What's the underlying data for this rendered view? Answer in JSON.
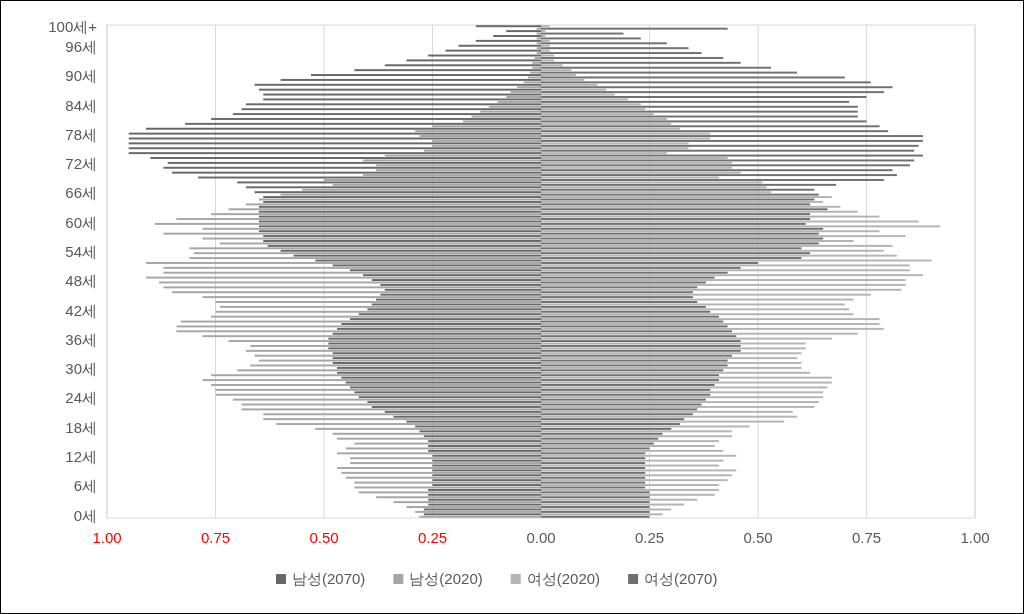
{
  "chart_data": {
    "type": "bar",
    "orientation": "horizontal",
    "legend": "bottom",
    "grid": "x",
    "categories": [
      "100세+",
      null,
      null,
      null,
      "96세",
      null,
      null,
      null,
      null,
      null,
      "90세",
      null,
      null,
      null,
      null,
      null,
      "84세",
      null,
      null,
      null,
      null,
      null,
      "78세",
      null,
      null,
      null,
      null,
      null,
      "72세",
      null,
      null,
      null,
      null,
      null,
      "66세",
      null,
      null,
      null,
      null,
      null,
      "60세",
      null,
      null,
      null,
      null,
      null,
      "54세",
      null,
      null,
      null,
      null,
      null,
      "48세",
      null,
      null,
      null,
      null,
      null,
      "42세",
      null,
      null,
      null,
      null,
      null,
      "36세",
      null,
      null,
      null,
      null,
      null,
      "30세",
      null,
      null,
      null,
      null,
      null,
      "24세",
      null,
      null,
      null,
      null,
      null,
      "18세",
      null,
      null,
      null,
      null,
      null,
      "12세",
      null,
      null,
      null,
      null,
      null,
      "6세",
      null,
      null,
      null,
      null,
      null,
      "0세"
    ],
    "xlim": [
      -1,
      1
    ],
    "xticks": [
      {
        "value": -1,
        "label": "1.00"
      },
      {
        "value": -0.75,
        "label": "0.75"
      },
      {
        "value": -0.5,
        "label": "0.50"
      },
      {
        "value": -0.25,
        "label": "0.25"
      },
      {
        "value": 0,
        "label": "0.00"
      },
      {
        "value": 0.25,
        "label": "0.25"
      },
      {
        "value": 0.5,
        "label": "0.50"
      },
      {
        "value": 0.75,
        "label": "0.75"
      },
      {
        "value": 1,
        "label": "1.00"
      }
    ],
    "series": [
      {
        "name": "남성(2070)",
        "color": "#686868",
        "values": [
          -0.15,
          -0.08,
          -0.11,
          -0.15,
          -0.19,
          -0.22,
          -0.26,
          -0.31,
          -0.36,
          -0.43,
          -0.53,
          -0.6,
          -0.66,
          -0.65,
          -0.64,
          -0.64,
          -0.68,
          -0.69,
          -0.71,
          -0.76,
          -0.82,
          -0.91,
          -0.95,
          -0.95,
          -0.95,
          -0.95,
          -0.95,
          -0.9,
          -0.86,
          -0.87,
          -0.85,
          -0.79,
          -0.7,
          -0.68,
          -0.66,
          -0.64,
          -0.64,
          -0.65,
          -0.65,
          -0.65,
          -0.65,
          -0.65,
          -0.65,
          -0.64,
          -0.64,
          -0.63,
          -0.6,
          -0.57,
          -0.52,
          -0.48,
          -0.44,
          -0.41,
          -0.39,
          -0.37,
          -0.36,
          -0.37,
          -0.38,
          -0.39,
          -0.4,
          -0.42,
          -0.44,
          -0.46,
          -0.47,
          -0.48,
          -0.49,
          -0.49,
          -0.49,
          -0.48,
          -0.48,
          -0.48,
          -0.47,
          -0.47,
          -0.46,
          -0.45,
          -0.44,
          -0.43,
          -0.42,
          -0.4,
          -0.39,
          -0.36,
          -0.34,
          -0.31,
          -0.29,
          -0.28,
          -0.27,
          -0.26,
          -0.26,
          -0.26,
          -0.25,
          -0.25,
          -0.25,
          -0.25,
          -0.25,
          -0.25,
          -0.25,
          -0.26,
          -0.26,
          -0.26,
          -0.26,
          -0.27,
          -0.27
        ]
      },
      {
        "name": "남성(2020)",
        "color": "#a6a6a6",
        "values": [
          -0.01,
          -0.01,
          -0.01,
          -0.01,
          -0.01,
          -0.01,
          -0.015,
          -0.02,
          -0.02,
          -0.025,
          -0.03,
          -0.04,
          -0.055,
          -0.07,
          -0.08,
          -0.1,
          -0.12,
          -0.14,
          -0.16,
          -0.18,
          -0.25,
          -0.29,
          -0.28,
          -0.25,
          -0.25,
          -0.27,
          -0.36,
          -0.41,
          -0.38,
          -0.38,
          -0.41,
          -0.5,
          -0.48,
          -0.55,
          -0.6,
          -0.65,
          -0.68,
          -0.72,
          -0.76,
          -0.84,
          -0.89,
          -0.78,
          -0.87,
          -0.78,
          -0.74,
          -0.81,
          -0.8,
          -0.81,
          -0.91,
          -0.87,
          -0.87,
          -0.91,
          -0.88,
          -0.87,
          -0.85,
          -0.78,
          -0.75,
          -0.74,
          -0.75,
          -0.76,
          -0.83,
          -0.84,
          -0.84,
          -0.78,
          -0.72,
          -0.67,
          -0.68,
          -0.66,
          -0.65,
          -0.67,
          -0.7,
          -0.76,
          -0.78,
          -0.76,
          -0.75,
          -0.75,
          -0.71,
          -0.69,
          -0.69,
          -0.64,
          -0.64,
          -0.61,
          -0.52,
          -0.48,
          -0.47,
          -0.43,
          -0.45,
          -0.47,
          -0.44,
          -0.44,
          -0.47,
          -0.46,
          -0.45,
          -0.43,
          -0.43,
          -0.42,
          -0.38,
          -0.34,
          -0.31,
          -0.29,
          -0.28
        ]
      },
      {
        "name": "여성(2020)",
        "color": "#b4b4b4",
        "values": [
          0.02,
          0.01,
          0.01,
          0.02,
          0.02,
          0.02,
          0.03,
          0.03,
          0.05,
          0.07,
          0.08,
          0.1,
          0.13,
          0.15,
          0.17,
          0.2,
          0.23,
          0.24,
          0.26,
          0.29,
          0.3,
          0.32,
          0.39,
          0.39,
          0.34,
          0.34,
          0.29,
          0.43,
          0.44,
          0.44,
          0.46,
          0.41,
          0.51,
          0.52,
          0.53,
          0.67,
          0.65,
          0.69,
          0.73,
          0.78,
          0.87,
          0.92,
          0.78,
          0.84,
          0.72,
          0.81,
          0.79,
          0.82,
          0.9,
          0.85,
          0.85,
          0.88,
          0.84,
          0.84,
          0.83,
          0.76,
          0.72,
          0.7,
          0.71,
          0.72,
          0.78,
          0.78,
          0.79,
          0.73,
          0.67,
          0.61,
          0.61,
          0.6,
          0.59,
          0.6,
          0.6,
          0.62,
          0.67,
          0.67,
          0.66,
          0.65,
          0.65,
          0.64,
          0.63,
          0.58,
          0.59,
          0.56,
          0.48,
          0.44,
          0.44,
          0.41,
          0.4,
          0.42,
          0.45,
          0.42,
          0.41,
          0.45,
          0.44,
          0.43,
          0.41,
          0.41,
          0.4,
          0.36,
          0.33,
          0.3,
          0.28
        ]
      },
      {
        "name": "여성(2070)",
        "color": "#707070",
        "values": [
          0.43,
          0.19,
          0.23,
          0.29,
          0.34,
          0.37,
          0.42,
          0.46,
          0.53,
          0.59,
          0.7,
          0.76,
          0.81,
          0.79,
          0.75,
          0.71,
          0.73,
          0.73,
          0.73,
          0.75,
          0.78,
          0.8,
          0.88,
          0.88,
          0.87,
          0.86,
          0.88,
          0.86,
          0.85,
          0.81,
          0.82,
          0.79,
          0.68,
          0.63,
          0.64,
          0.63,
          0.62,
          0.66,
          0.62,
          0.62,
          0.61,
          0.65,
          0.64,
          0.65,
          0.64,
          0.6,
          0.62,
          0.6,
          0.5,
          0.46,
          0.43,
          0.4,
          0.38,
          0.36,
          0.35,
          0.35,
          0.36,
          0.38,
          0.39,
          0.41,
          0.42,
          0.43,
          0.44,
          0.45,
          0.46,
          0.46,
          0.46,
          0.44,
          0.43,
          0.43,
          0.42,
          0.41,
          0.41,
          0.4,
          0.39,
          0.39,
          0.38,
          0.37,
          0.36,
          0.35,
          0.33,
          0.32,
          0.3,
          0.28,
          0.27,
          0.26,
          0.25,
          0.24,
          0.24,
          0.24,
          0.24,
          0.24,
          0.24,
          0.24,
          0.24,
          0.25,
          0.25,
          0.25,
          0.25,
          0.25,
          0.25
        ]
      }
    ]
  }
}
